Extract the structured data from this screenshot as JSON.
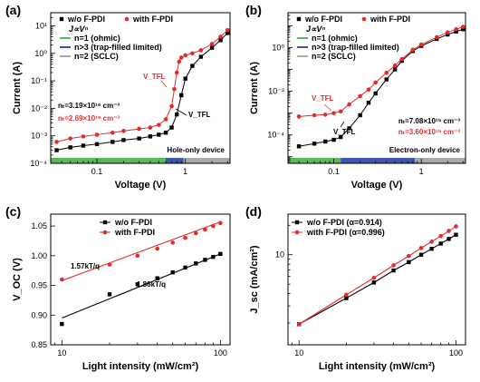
{
  "chart_data": [
    {
      "panel": "(a)",
      "type": "line",
      "xscale": "log",
      "yscale": "log",
      "xlabel": "Voltage (V)",
      "ylabel": "Current (A)",
      "xlim": [
        0.03,
        3.2
      ],
      "ylim": [
        0.0001,
        30
      ],
      "xticks": [
        0.1,
        1
      ],
      "xtick_labels": [
        "0.1",
        "1"
      ],
      "yticks": [
        0.0001,
        0.001,
        0.01,
        0.1,
        1,
        10
      ],
      "ytick_labels": [
        "10⁻⁴",
        "10⁻³",
        "10⁻²",
        "10⁻¹",
        "10⁰",
        "10¹"
      ],
      "series": [
        {
          "name": "w/o F-PDI",
          "color": "#000000",
          "marker": "square",
          "x": [
            0.035,
            0.05,
            0.07,
            0.1,
            0.15,
            0.2,
            0.3,
            0.4,
            0.5,
            0.6,
            0.7,
            0.8,
            0.9,
            1.0,
            1.2,
            1.5,
            2.0,
            2.5,
            3.0
          ],
          "y": [
            0.0003,
            0.00038,
            0.00044,
            0.0005,
            0.0006,
            0.0007,
            0.0008,
            0.00095,
            0.0011,
            0.0013,
            0.002,
            0.006,
            0.03,
            0.12,
            0.35,
            0.75,
            1.6,
            3.0,
            5.5
          ]
        },
        {
          "name": "with F-PDI",
          "color": "#e52b2b",
          "marker": "circle",
          "x": [
            0.035,
            0.05,
            0.07,
            0.1,
            0.15,
            0.2,
            0.3,
            0.4,
            0.5,
            0.6,
            0.7,
            0.75,
            0.8,
            0.85,
            0.9,
            1.0,
            1.2,
            1.5,
            2.0,
            2.5,
            3.0
          ],
          "y": [
            0.0006,
            0.0008,
            0.00095,
            0.0011,
            0.0013,
            0.0015,
            0.0018,
            0.002,
            0.0025,
            0.004,
            0.012,
            0.05,
            0.2,
            0.5,
            0.7,
            0.85,
            1.0,
            1.3,
            2.2,
            4.0,
            7.0
          ]
        }
      ],
      "legend": [
        {
          "label": "w/o F-PDI",
          "color": "#000000",
          "marker": "square"
        },
        {
          "label": "with F-PDI",
          "color": "#e52b2b",
          "marker": "circle"
        }
      ],
      "model_legend": [
        {
          "label": "J∝Vⁿ",
          "color": null
        },
        {
          "label": "n=1 (ohmic)",
          "color": "#5cb85c"
        },
        {
          "label": "n>3 (trap-filled limited)",
          "color": "#3f56b0"
        },
        {
          "label": "n=2 (SCLC)",
          "color": "#a8a8a8"
        }
      ],
      "annotations": {
        "nt_black": "nₜ=3.19×10¹⁶ cm⁻³",
        "nt_red": "nₜ=2.69×10¹⁶ cm⁻³",
        "vtfl_red": "V_TFL",
        "vtfl_black": "V_TFL",
        "device": "Hole-only device"
      },
      "region_bar": [
        {
          "from": 0.03,
          "to": 0.6,
          "color": "#5cb85c"
        },
        {
          "from": 0.6,
          "to": 0.95,
          "color": "#3f56b0"
        },
        {
          "from": 0.95,
          "to": 3.2,
          "color": "#a8a8a8"
        }
      ]
    },
    {
      "panel": "(b)",
      "type": "line",
      "xscale": "log",
      "yscale": "log",
      "xlabel": "Voltage (V)",
      "ylabel": "Current (A)",
      "xlim": [
        0.03,
        3.2
      ],
      "ylim": [
        5e-06,
        40
      ],
      "xticks": [
        0.1,
        1
      ],
      "xtick_labels": [
        "0.1",
        "1"
      ],
      "yticks": [
        0.0001,
        0.01,
        1
      ],
      "ytick_labels": [
        "10⁻⁴",
        "10⁻²",
        "10⁰"
      ],
      "series": [
        {
          "name": "w/o F-PDI",
          "color": "#000000",
          "marker": "square",
          "x": [
            0.04,
            0.06,
            0.08,
            0.1,
            0.12,
            0.15,
            0.2,
            0.25,
            0.3,
            0.4,
            0.5,
            0.6,
            0.8,
            1.0,
            1.5,
            2.0,
            2.5,
            3.0
          ],
          "y": [
            3e-05,
            4e-05,
            5e-05,
            6e-05,
            8e-05,
            0.0002,
            0.0008,
            0.003,
            0.008,
            0.035,
            0.1,
            0.25,
            0.7,
            1.2,
            2.5,
            4.0,
            5.5,
            7.0
          ]
        },
        {
          "name": "with F-PDI",
          "color": "#e52b2b",
          "marker": "circle",
          "x": [
            0.04,
            0.06,
            0.08,
            0.1,
            0.12,
            0.15,
            0.2,
            0.25,
            0.3,
            0.4,
            0.5,
            0.6,
            0.8,
            1.0,
            1.5,
            2.0,
            2.5,
            3.0
          ],
          "y": [
            0.0007,
            0.0008,
            0.00085,
            0.001,
            0.0012,
            0.0025,
            0.006,
            0.012,
            0.025,
            0.07,
            0.15,
            0.3,
            0.8,
            1.4,
            3.0,
            5.0,
            7.0,
            9.0
          ]
        }
      ],
      "legend": [
        {
          "label": "w/o F-PDI",
          "color": "#000000",
          "marker": "square"
        },
        {
          "label": "with F-PDI",
          "color": "#e52b2b",
          "marker": "circle"
        }
      ],
      "model_legend": [
        {
          "label": "J∝Vⁿ",
          "color": null
        },
        {
          "label": "n=1 (ohmic)",
          "color": "#5cb85c"
        },
        {
          "label": "n>3 (trap-filled limited)",
          "color": "#3f56b0"
        },
        {
          "label": "n=2 (SCLC)",
          "color": "#a8a8a8"
        }
      ],
      "annotations": {
        "nt_black": "nₜ=7.08×10¹⁵ cm⁻³",
        "nt_red": "nₜ=3.60×10¹⁵ cm⁻³",
        "vtfl_red": "V_TFL",
        "vtfl_black": "V_TFL",
        "device": "Electron-only device"
      },
      "region_bar": [
        {
          "from": 0.03,
          "to": 0.12,
          "color": "#5cb85c"
        },
        {
          "from": 0.12,
          "to": 0.85,
          "color": "#3f56b0"
        },
        {
          "from": 0.85,
          "to": 3.2,
          "color": "#a8a8a8"
        }
      ]
    },
    {
      "panel": "(c)",
      "type": "scatter",
      "xscale": "log",
      "yscale": "linear",
      "xlabel": "Light intensity (mW/cm²)",
      "ylabel": "V_OC (V)",
      "xlim": [
        8.5,
        115
      ],
      "ylim": [
        0.85,
        1.07
      ],
      "xticks": [
        10,
        100
      ],
      "xtick_labels": [
        "10",
        "100"
      ],
      "yticks": [
        0.85,
        0.9,
        0.95,
        1.0,
        1.05
      ],
      "ytick_labels": [
        "0.85",
        "0.90",
        "0.95",
        "1.00",
        "1.05"
      ],
      "series": [
        {
          "name": "w/o F-PDI",
          "color": "#000000",
          "marker": "square",
          "x": [
            10,
            20,
            30,
            40,
            50,
            60,
            70,
            80,
            90,
            100
          ],
          "y": [
            0.885,
            0.935,
            0.952,
            0.962,
            0.972,
            0.98,
            0.987,
            0.993,
            0.998,
            1.003
          ],
          "fit": [
            0.895,
            1.003
          ]
        },
        {
          "name": "with F-PDI",
          "color": "#e52b2b",
          "marker": "circle",
          "x": [
            10,
            20,
            30,
            40,
            50,
            60,
            70,
            80,
            90,
            100
          ],
          "y": [
            0.96,
            0.985,
            1.0,
            1.012,
            1.022,
            1.03,
            1.038,
            1.044,
            1.05,
            1.055
          ],
          "fit": [
            0.958,
            1.057
          ]
        }
      ],
      "legend": [
        {
          "label": "w/o F-PDI",
          "color": "#000000",
          "marker": "square"
        },
        {
          "label": "with F-PDI",
          "color": "#e52b2b",
          "marker": "circle"
        }
      ],
      "annotations": {
        "fit_red": "1.57kT/q",
        "fit_black": "1.86kT/q"
      }
    },
    {
      "panel": "(d)",
      "type": "scatter",
      "xscale": "log",
      "yscale": "log",
      "xlabel": "Light intensity (mW/cm²)",
      "ylabel": "J_sc (mA/cm²)",
      "xlim": [
        8.5,
        115
      ],
      "ylim": [
        1.2,
        26
      ],
      "xticks": [
        10,
        100
      ],
      "xtick_labels": [
        "10",
        "100"
      ],
      "yticks": [
        10
      ],
      "ytick_labels": [
        "10"
      ],
      "series": [
        {
          "name": "w/o F-PDI (α=0.914)",
          "color": "#000000",
          "marker": "square",
          "x": [
            10,
            20,
            30,
            40,
            50,
            60,
            70,
            80,
            90,
            100
          ],
          "y": [
            1.95,
            3.6,
            5.2,
            6.9,
            8.4,
            10.0,
            11.5,
            13.0,
            14.5,
            16.0
          ]
        },
        {
          "name": "with F-PDI (α=0.996)",
          "color": "#e52b2b",
          "marker": "circle",
          "x": [
            10,
            20,
            30,
            40,
            50,
            60,
            70,
            80,
            90,
            100
          ],
          "y": [
            1.95,
            3.9,
            5.8,
            7.8,
            9.7,
            11.7,
            13.6,
            15.5,
            17.5,
            19.5
          ]
        }
      ],
      "legend": [
        {
          "label": "w/o F-PDI (α=0.914)",
          "color": "#000000",
          "marker": "square"
        },
        {
          "label": "with F-PDI (α=0.996)",
          "color": "#e52b2b",
          "marker": "circle"
        }
      ]
    }
  ]
}
